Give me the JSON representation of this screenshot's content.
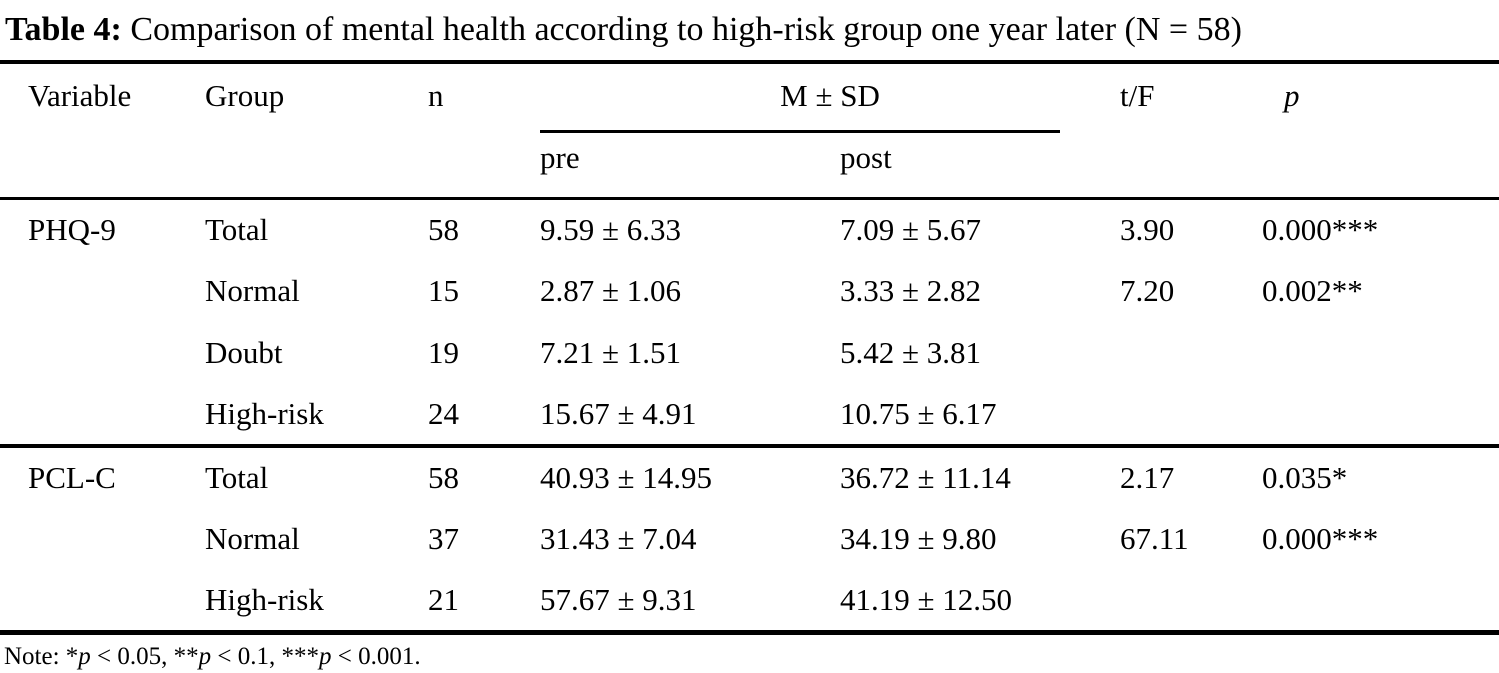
{
  "title": {
    "label": "Table 4:",
    "text": " Comparison of mental health according to high-risk group one year later (N = 58)"
  },
  "table": {
    "headers": {
      "variable": "Variable",
      "group": "Group",
      "n": "n",
      "msd": "M ± SD",
      "pre": "pre",
      "post": "post",
      "tf": "t/F",
      "p": "p"
    },
    "rows": [
      {
        "variable": "PHQ-9",
        "group": "Total",
        "n": "58",
        "pre": "9.59 ± 6.33",
        "post": "7.09 ± 5.67",
        "tf": "3.90",
        "p": "0.000***"
      },
      {
        "variable": "",
        "group": "Normal",
        "n": "15",
        "pre": "2.87 ± 1.06",
        "post": "3.33 ± 2.82",
        "tf": "7.20",
        "p": "0.002**"
      },
      {
        "variable": "",
        "group": "Doubt",
        "n": "19",
        "pre": "7.21 ± 1.51",
        "post": "5.42 ± 3.81",
        "tf": "",
        "p": ""
      },
      {
        "variable": "",
        "group": "High-risk",
        "n": "24",
        "pre": "15.67 ± 4.91",
        "post": "10.75 ± 6.17",
        "tf": "",
        "p": ""
      },
      {
        "variable": "PCL-C",
        "group": "Total",
        "n": "58",
        "pre": "40.93 ± 14.95",
        "post": "36.72 ± 11.14",
        "tf": "2.17",
        "p": "0.035*"
      },
      {
        "variable": "",
        "group": "Normal",
        "n": "37",
        "pre": "31.43 ± 7.04",
        "post": "34.19 ± 9.80",
        "tf": "67.11",
        "p": "0.000***"
      },
      {
        "variable": "",
        "group": "High-risk",
        "n": "21",
        "pre": "57.67 ± 9.31",
        "post": "41.19 ± 12.50",
        "tf": "",
        "p": ""
      }
    ]
  },
  "note": {
    "parts": [
      "Note: *",
      "p",
      " < 0.05, **",
      "p",
      " < 0.1, ***",
      "p",
      " < 0.001."
    ]
  }
}
